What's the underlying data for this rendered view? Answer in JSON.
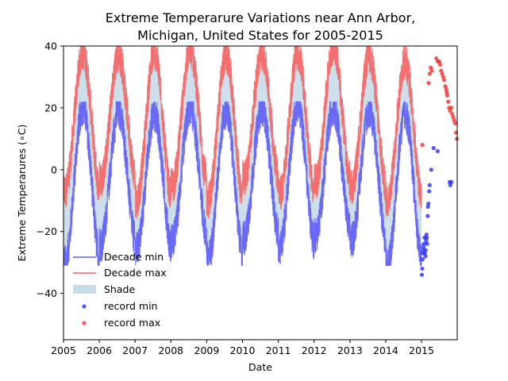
{
  "chart_data": {
    "type": "line",
    "title_lines": [
      "Extreme Temperarure Variations near Ann Arbor,",
      "Michigan, United States for 2005-2015"
    ],
    "xlabel": "Date",
    "ylabel": "Extreme Temperarures (∘C)",
    "x_axis": "date",
    "xlim": [
      "2005-01-01",
      "2015-12-31"
    ],
    "ylim": [
      -55,
      40
    ],
    "x_ticks": [
      "2005",
      "2006",
      "2007",
      "2008",
      "2009",
      "2010",
      "2011",
      "2012",
      "2013",
      "2014",
      "2015"
    ],
    "y_ticks": [
      40,
      20,
      0,
      -20,
      -40
    ],
    "grid": false,
    "legend_position": "lower-left",
    "series": [
      {
        "name": "Decade min",
        "kind": "line",
        "color": "#5b5bf5",
        "x_range": [
          "2005-01-01",
          "2014-12-31"
        ],
        "annual_low_values": [
          -30,
          -24,
          -26,
          -23,
          -29,
          -22,
          -25,
          -21,
          -23,
          -31
        ],
        "annual_high_values": [
          20,
          19,
          18,
          20,
          19,
          20,
          21,
          20,
          19,
          18
        ]
      },
      {
        "name": "Decade max",
        "kind": "line",
        "color": "#f56060",
        "x_range": [
          "2005-01-01",
          "2014-12-31"
        ],
        "annual_low_values": [
          -7,
          -3,
          -10,
          -5,
          -10,
          -3,
          -8,
          -4,
          -6,
          -10
        ],
        "annual_high_values": [
          38,
          37,
          38,
          39,
          37,
          38,
          38,
          40,
          37,
          35
        ]
      },
      {
        "name": "Shade",
        "kind": "area",
        "color": "#c9dcea",
        "between": [
          "Decade min",
          "Decade max"
        ]
      },
      {
        "name": "record min",
        "kind": "scatter",
        "color": "#2d2df0",
        "points": [
          {
            "x": "2015-01-05",
            "y": -34
          },
          {
            "x": "2015-01-08",
            "y": -32
          },
          {
            "x": "2015-01-12",
            "y": -29
          },
          {
            "x": "2015-01-15",
            "y": -27
          },
          {
            "x": "2015-01-18",
            "y": -26
          },
          {
            "x": "2015-01-21",
            "y": -25
          },
          {
            "x": "2015-01-25",
            "y": -24
          },
          {
            "x": "2015-02-01",
            "y": -22
          },
          {
            "x": "2015-02-05",
            "y": -27
          },
          {
            "x": "2015-02-10",
            "y": -28
          },
          {
            "x": "2015-02-13",
            "y": -26
          },
          {
            "x": "2015-02-17",
            "y": -23
          },
          {
            "x": "2015-02-20",
            "y": -21
          },
          {
            "x": "2015-02-24",
            "y": -22
          },
          {
            "x": "2015-02-27",
            "y": -24
          },
          {
            "x": "2015-03-05",
            "y": -15
          },
          {
            "x": "2015-03-08",
            "y": -12
          },
          {
            "x": "2015-03-12",
            "y": -11
          },
          {
            "x": "2015-03-20",
            "y": -7
          },
          {
            "x": "2015-03-25",
            "y": -5
          },
          {
            "x": "2015-04-10",
            "y": 0
          },
          {
            "x": "2015-05-05",
            "y": 7
          },
          {
            "x": "2015-06-15",
            "y": 6
          },
          {
            "x": "2015-10-15",
            "y": -4
          },
          {
            "x": "2015-10-22",
            "y": -5
          },
          {
            "x": "2015-11-02",
            "y": -4
          }
        ]
      },
      {
        "name": "record max",
        "kind": "scatter",
        "color": "#f03030",
        "points": [
          {
            "x": "2015-01-10",
            "y": 8
          },
          {
            "x": "2015-03-15",
            "y": 28
          },
          {
            "x": "2015-03-25",
            "y": 31
          },
          {
            "x": "2015-04-05",
            "y": 33
          },
          {
            "x": "2015-04-15",
            "y": 32
          },
          {
            "x": "2015-06-01",
            "y": 36
          },
          {
            "x": "2015-06-15",
            "y": 35
          },
          {
            "x": "2015-07-01",
            "y": 35
          },
          {
            "x": "2015-07-10",
            "y": 34
          },
          {
            "x": "2015-07-20",
            "y": 32
          },
          {
            "x": "2015-08-01",
            "y": 31
          },
          {
            "x": "2015-08-10",
            "y": 30
          },
          {
            "x": "2015-08-20",
            "y": 29
          },
          {
            "x": "2015-09-01",
            "y": 27
          },
          {
            "x": "2015-09-10",
            "y": 26
          },
          {
            "x": "2015-09-15",
            "y": 25
          },
          {
            "x": "2015-09-20",
            "y": 24
          },
          {
            "x": "2015-10-01",
            "y": 22
          },
          {
            "x": "2015-10-10",
            "y": 20
          },
          {
            "x": "2015-10-20",
            "y": 19
          },
          {
            "x": "2015-11-01",
            "y": 20
          },
          {
            "x": "2015-11-10",
            "y": 18
          },
          {
            "x": "2015-11-20",
            "y": 17
          },
          {
            "x": "2015-12-01",
            "y": 16
          },
          {
            "x": "2015-12-10",
            "y": 15
          },
          {
            "x": "2015-12-20",
            "y": 12
          },
          {
            "x": "2015-12-28",
            "y": 10
          }
        ]
      }
    ],
    "legend": [
      "Decade min",
      "Decade max",
      "Shade",
      "record min",
      "record max"
    ]
  }
}
